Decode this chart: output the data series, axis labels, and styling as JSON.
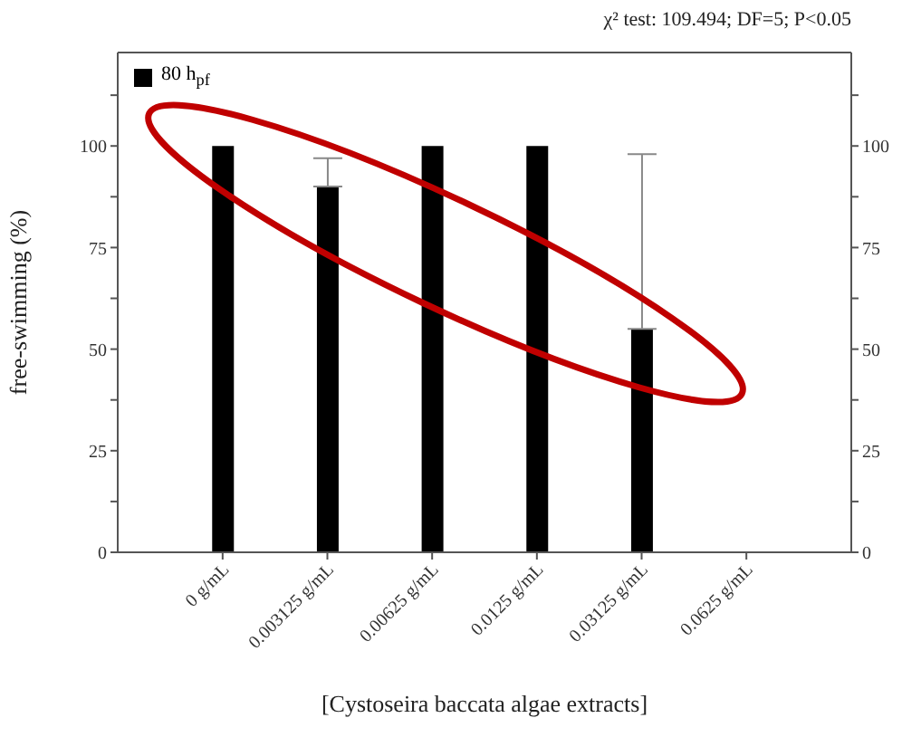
{
  "chart_data": {
    "type": "bar",
    "annotations": [
      "χ² test: 109.494; DF=5; P<0.05"
    ],
    "xlabel": "[Cystoseira baccata algae extracts]",
    "ylabel": "free-swimming (%)",
    "categories": [
      "0 g/mL",
      "0.003125 g/mL",
      "0.00625 g/mL",
      "0.0125 g/mL",
      "0.03125 g/mL",
      "0.0625 g/mL"
    ],
    "series": [
      {
        "name": "80 h$_{pf}$",
        "color": "#000000",
        "values": [
          100,
          90,
          100,
          100,
          55,
          0
        ],
        "errors": [
          null,
          [
            90,
            97
          ],
          null,
          null,
          [
            55,
            98
          ],
          null
        ]
      }
    ],
    "ylim": [
      0,
      123
    ],
    "yticks": [
      0,
      {
        "value": 12.5,
        "label": null
      },
      25,
      {
        "value": 37.5,
        "label": null
      },
      50,
      {
        "value": 62.5,
        "label": null
      },
      75,
      {
        "value": 87.5,
        "label": null
      },
      100,
      {
        "value": 112.5,
        "label": null
      }
    ],
    "y2lim": [
      0,
      123
    ],
    "y2ticks": [
      0,
      {
        "value": 12.5,
        "label": null
      },
      25,
      {
        "value": 37.5,
        "label": null
      },
      50,
      {
        "value": 62.5,
        "label": null
      },
      75,
      {
        "value": 87.5,
        "label": null
      },
      100,
      {
        "value": 112.5,
        "label": null
      }
    ],
    "legend": "top left",
    "grid": false
  }
}
